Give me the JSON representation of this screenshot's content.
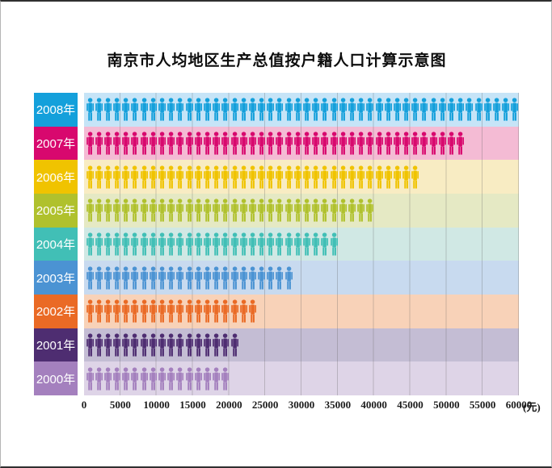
{
  "page": {
    "title": "南京市人均地区生产总值按户籍人口计算示意图"
  },
  "chart_data": {
    "type": "bar",
    "subtype": "pictograph",
    "orientation": "horizontal",
    "title": "南京市人均地区生产总值按户籍人口计算示意图",
    "xlabel": "",
    "ylabel": "",
    "unit_label": "(元)",
    "xlim": [
      0,
      60000
    ],
    "x_ticks": [
      0,
      5000,
      10000,
      15000,
      20000,
      25000,
      30000,
      35000,
      40000,
      45000,
      50000,
      55000,
      60000
    ],
    "grid": "vertical",
    "icon_unit_value": 1250,
    "icon_name": "person-icon",
    "rows": [
      {
        "year": "2008年",
        "value": 60000,
        "icons": 48,
        "color": "#14a0db",
        "bg": "#c6e4f7"
      },
      {
        "year": "2007年",
        "value": 52500,
        "icons": 42,
        "color": "#d8086e",
        "bg": "#f4bbd4"
      },
      {
        "year": "2006年",
        "value": 46250,
        "icons": 37,
        "color": "#f0c300",
        "bg": "#f8ecc3"
      },
      {
        "year": "2005年",
        "value": 40000,
        "icons": 32,
        "color": "#b0c12d",
        "bg": "#e5e9c4"
      },
      {
        "year": "2004年",
        "value": 35000,
        "icons": 28,
        "color": "#41bfb6",
        "bg": "#d0e8e4"
      },
      {
        "year": "2003年",
        "value": 28750,
        "icons": 23,
        "color": "#4b93d3",
        "bg": "#c8daef"
      },
      {
        "year": "2002年",
        "value": 23750,
        "icons": 19,
        "color": "#ea6a25",
        "bg": "#f8d2b8"
      },
      {
        "year": "2001年",
        "value": 21250,
        "icons": 17,
        "color": "#4e2d71",
        "bg": "#c4bdd4"
      },
      {
        "year": "2000年",
        "value": 20000,
        "icons": 16,
        "color": "#a480be",
        "bg": "#ded4e7"
      }
    ],
    "gridline_color": "rgba(95,95,95,0.30)"
  }
}
